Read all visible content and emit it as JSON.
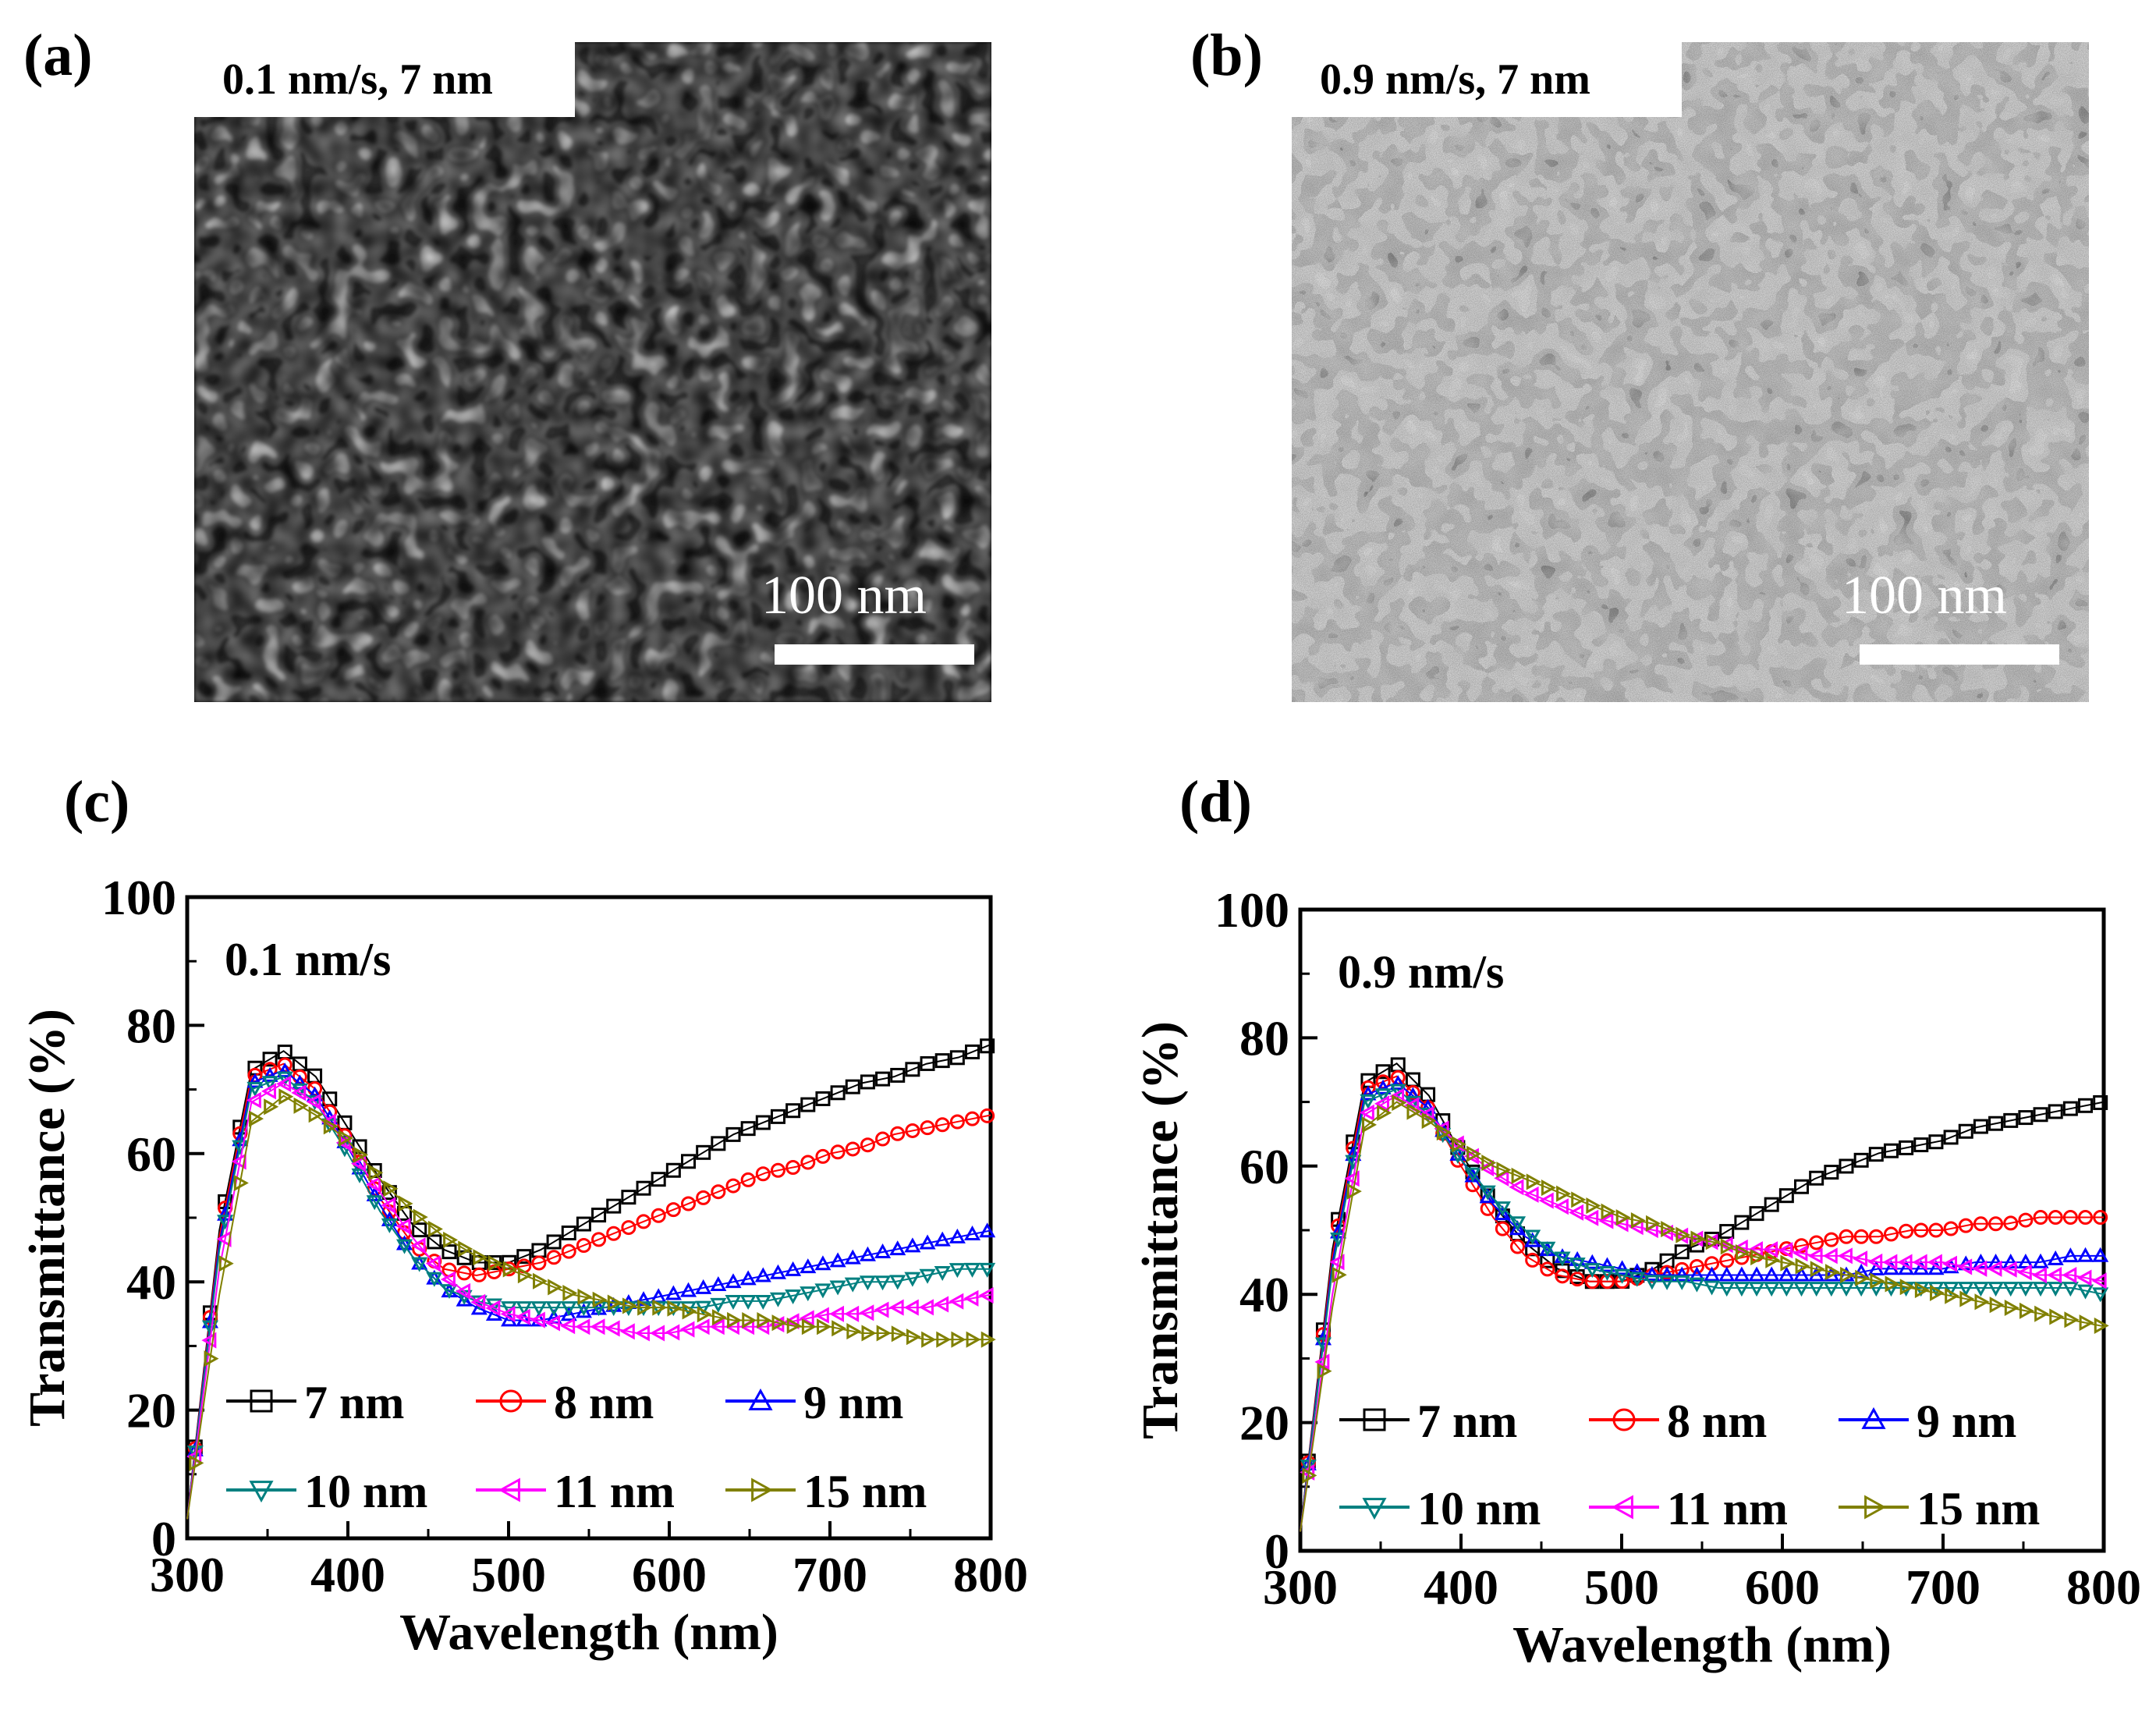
{
  "panels": {
    "a": {
      "label": "(a)",
      "caption": "0.1 nm/s, 7 nm",
      "scale_bar": "100 nm"
    },
    "b": {
      "label": "(b)",
      "caption": "0.9 nm/s, 7 nm",
      "scale_bar": "100 nm"
    },
    "c": {
      "label": "(c)"
    },
    "d": {
      "label": "(d)"
    }
  },
  "chart_data": [
    {
      "id": "c",
      "type": "line",
      "annotation": "0.1 nm/s",
      "xlabel": "Wavelength (nm)",
      "ylabel": "Transmittance (%)",
      "xlim": [
        300,
        800
      ],
      "ylim": [
        0,
        100
      ],
      "xticks": [
        300,
        400,
        500,
        600,
        700,
        800
      ],
      "yticks": [
        0,
        20,
        40,
        60,
        80,
        100
      ],
      "x": [
        300,
        320,
        340,
        360,
        380,
        400,
        420,
        440,
        460,
        480,
        500,
        520,
        540,
        560,
        580,
        600,
        620,
        640,
        660,
        680,
        700,
        720,
        740,
        760,
        780,
        800
      ],
      "series": [
        {
          "name": "7 nm",
          "color": "#000000",
          "marker": "square",
          "values": [
            3,
            48,
            73,
            76,
            72,
            64,
            56,
            49,
            45,
            43,
            43,
            45,
            48,
            51,
            54,
            57,
            60,
            63,
            65,
            67,
            69,
            71,
            72,
            74,
            75,
            77
          ]
        },
        {
          "name": "8 nm",
          "color": "#ff0000",
          "marker": "circle",
          "values": [
            3,
            47,
            72,
            74,
            70,
            62,
            53,
            46,
            42,
            41,
            42,
            43,
            45,
            47,
            49,
            51,
            53,
            55,
            57,
            58,
            60,
            61,
            63,
            64,
            65,
            66
          ]
        },
        {
          "name": "9 nm",
          "color": "#0000ff",
          "marker": "triangle-up",
          "values": [
            3,
            46,
            71,
            73,
            69,
            61,
            52,
            44,
            39,
            36,
            34,
            34,
            35,
            36,
            37,
            38,
            39,
            40,
            41,
            42,
            43,
            44,
            45,
            46,
            47,
            48
          ]
        },
        {
          "name": "10 nm",
          "color": "#008080",
          "marker": "triangle-down",
          "values": [
            3,
            45,
            70,
            72,
            68,
            60,
            51,
            44,
            39,
            37,
            36,
            36,
            36,
            36,
            36,
            36,
            36,
            37,
            37,
            38,
            39,
            40,
            40,
            41,
            42,
            42
          ]
        },
        {
          "name": "11 nm",
          "color": "#ff00ff",
          "marker": "triangle-left",
          "values": [
            3,
            42,
            68,
            71,
            68,
            61,
            54,
            47,
            41,
            37,
            35,
            34,
            33,
            33,
            32,
            32,
            33,
            33,
            33,
            34,
            35,
            35,
            36,
            36,
            37,
            38
          ]
        },
        {
          "name": "15 nm",
          "color": "#808000",
          "marker": "triangle-right",
          "values": [
            3,
            38,
            65,
            69,
            66,
            62,
            56,
            51,
            47,
            44,
            42,
            40,
            38,
            37,
            36,
            36,
            35,
            34,
            34,
            33,
            33,
            32,
            32,
            31,
            31,
            31
          ]
        }
      ],
      "legend": {
        "placement": "lower-center",
        "columns": 3
      }
    },
    {
      "id": "d",
      "type": "line",
      "annotation": "0.9 nm/s",
      "xlabel": "Wavelength (nm)",
      "ylabel": "Transmittance (%)",
      "xlim": [
        300,
        800
      ],
      "ylim": [
        0,
        100
      ],
      "xticks": [
        300,
        400,
        500,
        600,
        700,
        800
      ],
      "yticks": [
        0,
        20,
        40,
        60,
        80,
        100
      ],
      "x": [
        300,
        320,
        340,
        360,
        380,
        400,
        420,
        440,
        460,
        480,
        500,
        520,
        540,
        560,
        580,
        600,
        620,
        640,
        660,
        680,
        700,
        720,
        740,
        760,
        780,
        800
      ],
      "series": [
        {
          "name": "7 nm",
          "color": "#000000",
          "marker": "square",
          "values": [
            3,
            47,
            73,
            76,
            71,
            62,
            54,
            48,
            44,
            42,
            42,
            44,
            47,
            49,
            52,
            55,
            58,
            60,
            62,
            63,
            64,
            66,
            67,
            68,
            69,
            70
          ]
        },
        {
          "name": "8 nm",
          "color": "#ff0000",
          "marker": "circle",
          "values": [
            3,
            46,
            72,
            74,
            69,
            60,
            52,
            46,
            43,
            42,
            42,
            43,
            44,
            45,
            46,
            47,
            48,
            49,
            49,
            50,
            50,
            51,
            51,
            52,
            52,
            52
          ]
        },
        {
          "name": "9 nm",
          "color": "#0000ff",
          "marker": "triangle-up",
          "values": [
            3,
            45,
            71,
            73,
            69,
            61,
            54,
            49,
            46,
            45,
            44,
            43,
            43,
            43,
            43,
            43,
            43,
            43,
            44,
            44,
            44,
            45,
            45,
            45,
            46,
            46
          ]
        },
        {
          "name": "10 nm",
          "color": "#008080",
          "marker": "triangle-down",
          "values": [
            3,
            44,
            70,
            72,
            68,
            61,
            55,
            50,
            46,
            44,
            43,
            42,
            42,
            41,
            41,
            41,
            41,
            41,
            41,
            41,
            41,
            41,
            41,
            41,
            41,
            40
          ]
        },
        {
          "name": "11 nm",
          "color": "#ff00ff",
          "marker": "triangle-left",
          "values": [
            3,
            40,
            68,
            71,
            68,
            63,
            59,
            56,
            54,
            52,
            51,
            50,
            49,
            48,
            47,
            47,
            46,
            46,
            45,
            45,
            45,
            44,
            44,
            43,
            43,
            42
          ]
        },
        {
          "name": "15 nm",
          "color": "#808000",
          "marker": "triangle-right",
          "values": [
            3,
            38,
            66,
            70,
            67,
            63,
            60,
            58,
            56,
            54,
            52,
            51,
            49,
            48,
            46,
            45,
            44,
            43,
            42,
            41,
            40,
            39,
            38,
            37,
            36,
            35
          ]
        }
      ],
      "legend": {
        "placement": "lower-center",
        "columns": 3
      }
    }
  ]
}
